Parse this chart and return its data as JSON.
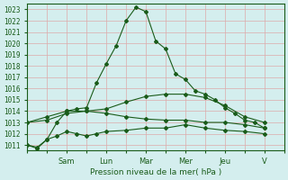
{
  "title": "Pression niveau de la mer( hPa )",
  "bg_color": "#d4eeee",
  "grid_color": "#ddaaaa",
  "line_color": "#1a5c1a",
  "ylim": [
    1010.5,
    1023.5
  ],
  "yticks": [
    1011,
    1012,
    1013,
    1014,
    1015,
    1016,
    1017,
    1018,
    1019,
    1020,
    1021,
    1022,
    1023
  ],
  "day_labels": [
    "Sam",
    "Lun",
    "Mar",
    "Mer",
    "Jeu",
    "V"
  ],
  "day_positions": [
    24,
    48,
    72,
    96,
    120,
    144
  ],
  "xlim": [
    0,
    156
  ],
  "lines": [
    {
      "x": [
        0,
        6,
        12,
        18,
        24,
        30,
        36,
        42,
        48,
        54,
        60,
        66,
        72,
        78,
        84,
        90,
        96,
        102,
        108,
        114,
        120,
        126,
        132,
        138,
        144
      ],
      "y": [
        1011.0,
        1010.8,
        1011.5,
        1013.0,
        1014.0,
        1014.2,
        1014.3,
        1016.5,
        1018.2,
        1019.8,
        1022.0,
        1023.2,
        1022.8,
        1020.2,
        1019.5,
        1017.3,
        1016.8,
        1015.8,
        1015.5,
        1015.0,
        1014.3,
        1013.8,
        1013.2,
        1013.0,
        1012.5
      ]
    },
    {
      "x": [
        0,
        12,
        24,
        36,
        48,
        60,
        72,
        84,
        96,
        108,
        120,
        132,
        144
      ],
      "y": [
        1013.0,
        1013.2,
        1013.8,
        1014.0,
        1014.2,
        1014.8,
        1015.3,
        1015.5,
        1015.5,
        1015.2,
        1014.5,
        1013.5,
        1013.0
      ]
    },
    {
      "x": [
        0,
        12,
        24,
        36,
        48,
        60,
        72,
        84,
        96,
        108,
        120,
        132,
        144
      ],
      "y": [
        1013.0,
        1013.5,
        1014.0,
        1014.0,
        1013.8,
        1013.5,
        1013.3,
        1013.2,
        1013.2,
        1013.0,
        1013.0,
        1012.8,
        1012.5
      ]
    },
    {
      "x": [
        0,
        6,
        12,
        18,
        24,
        30,
        36,
        42,
        48,
        60,
        72,
        84,
        96,
        108,
        120,
        132,
        144
      ],
      "y": [
        1011.0,
        1010.7,
        1011.5,
        1011.8,
        1012.2,
        1012.0,
        1011.8,
        1012.0,
        1012.2,
        1012.3,
        1012.5,
        1012.5,
        1012.8,
        1012.5,
        1012.3,
        1012.2,
        1012.0
      ]
    }
  ]
}
